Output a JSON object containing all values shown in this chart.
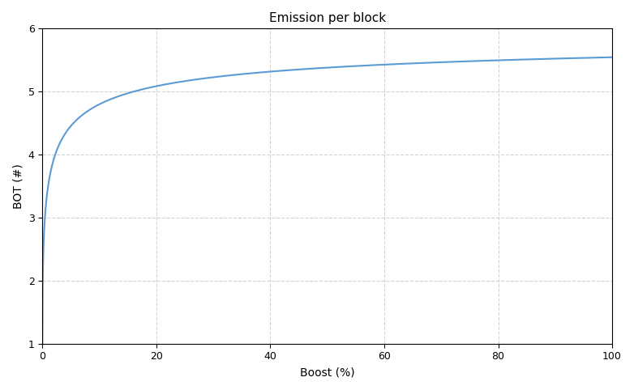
{
  "title": "Emission per block",
  "xlabel": "Boost (%)",
  "ylabel": "BOT (#)",
  "xlim": [
    0,
    100
  ],
  "ylim": [
    1,
    6
  ],
  "line_color": "#5b9bd5",
  "formula_A": 6.0,
  "formula_B": 5.0,
  "grid_linestyle": "--",
  "grid_color": "#c8c8c8",
  "grid_alpha": 0.8,
  "yticks": [
    1,
    2,
    3,
    4,
    5,
    6
  ],
  "xticks": [
    0,
    20,
    40,
    60,
    80,
    100
  ],
  "title_fontsize": 11,
  "label_fontsize": 10,
  "tick_fontsize": 9,
  "linewidth": 1.5
}
